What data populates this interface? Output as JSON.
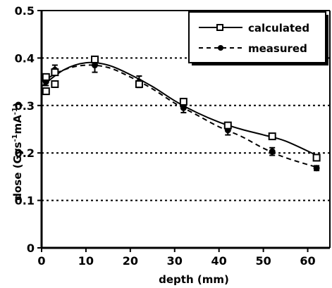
{
  "chart_data": {
    "type": "line",
    "xlabel": "depth (mm)",
    "ylabel": "dose (Gys",
    "ylabel_sup1": "-1",
    "ylabel_mid": "mA",
    "ylabel_sup2": "-1",
    "ylabel_end": ")",
    "xlim": [
      0,
      65
    ],
    "ylim": [
      0,
      0.5
    ],
    "x_ticks": [
      0,
      10,
      20,
      30,
      40,
      50,
      60
    ],
    "y_ticks": [
      0,
      0.1,
      0.2,
      0.3,
      0.4,
      0.5
    ],
    "y_tick_labels": [
      "0",
      "0.1",
      "0.2",
      "0.3",
      "0.4",
      "0.5"
    ],
    "grid": "horizontal dotted at 0.1, 0.2, 0.3, 0.4",
    "legend_position": "top-right",
    "series": [
      {
        "name": "calculated",
        "line_style": "solid",
        "marker": "open-square",
        "points": [
          {
            "x": 1,
            "y": 0.33
          },
          {
            "x": 1,
            "y": 0.36
          },
          {
            "x": 3,
            "y": 0.345
          },
          {
            "x": 3,
            "y": 0.37
          },
          {
            "x": 12,
            "y": 0.397
          },
          {
            "x": 22,
            "y": 0.345
          },
          {
            "x": 32,
            "y": 0.308
          },
          {
            "x": 42,
            "y": 0.258
          },
          {
            "x": 52,
            "y": 0.235
          },
          {
            "x": 62,
            "y": 0.19
          }
        ],
        "curve": [
          [
            0,
            0.34
          ],
          [
            5,
            0.375
          ],
          [
            10,
            0.39
          ],
          [
            15,
            0.385
          ],
          [
            20,
            0.365
          ],
          [
            25,
            0.34
          ],
          [
            30,
            0.31
          ],
          [
            35,
            0.285
          ],
          [
            40,
            0.265
          ],
          [
            45,
            0.25
          ],
          [
            50,
            0.238
          ],
          [
            55,
            0.225
          ],
          [
            62,
            0.195
          ]
        ]
      },
      {
        "name": "measured",
        "line_style": "dashed",
        "marker": "filled-circle",
        "points": [
          {
            "x": 1,
            "y": 0.35,
            "err": 0.008
          },
          {
            "x": 3,
            "y": 0.375,
            "err": 0.01
          },
          {
            "x": 12,
            "y": 0.385,
            "err": 0.015
          },
          {
            "x": 22,
            "y": 0.35,
            "err": 0.012
          },
          {
            "x": 32,
            "y": 0.295,
            "err": 0.01
          },
          {
            "x": 42,
            "y": 0.248,
            "err": 0.01
          },
          {
            "x": 52,
            "y": 0.203,
            "err": 0.008
          },
          {
            "x": 62,
            "y": 0.168,
            "err": 0.005
          }
        ],
        "curve": [
          [
            0,
            0.35
          ],
          [
            5,
            0.375
          ],
          [
            10,
            0.385
          ],
          [
            15,
            0.38
          ],
          [
            20,
            0.36
          ],
          [
            25,
            0.335
          ],
          [
            30,
            0.305
          ],
          [
            35,
            0.28
          ],
          [
            40,
            0.255
          ],
          [
            45,
            0.235
          ],
          [
            50,
            0.21
          ],
          [
            55,
            0.19
          ],
          [
            62,
            0.17
          ]
        ]
      }
    ]
  }
}
